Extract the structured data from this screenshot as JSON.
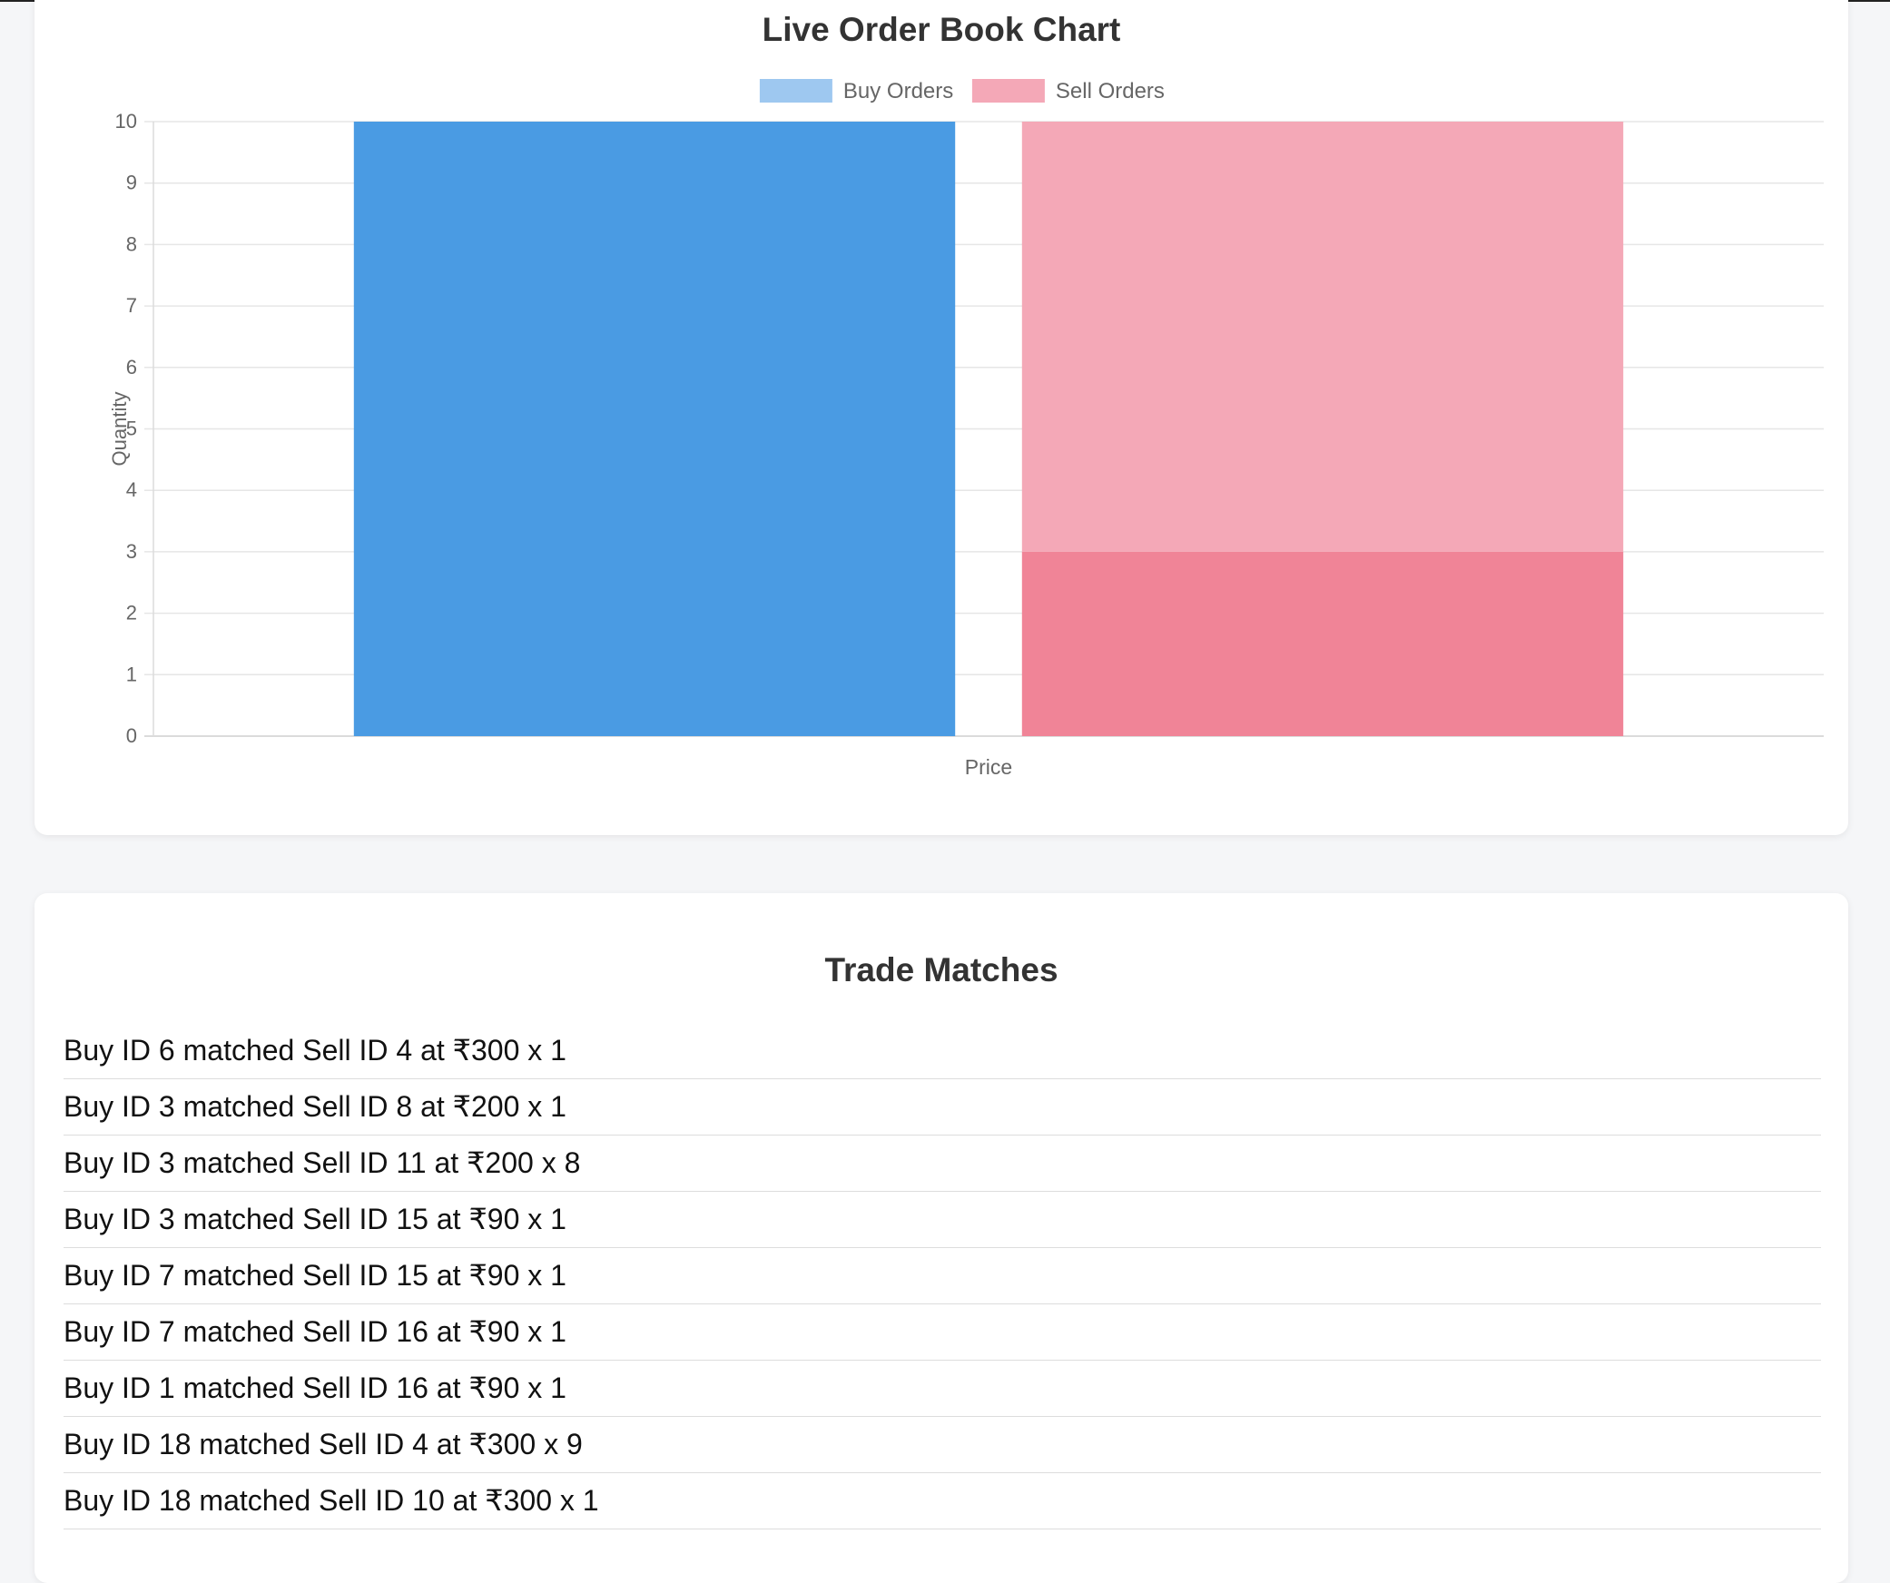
{
  "chart_card": {
    "title": "Live Order Book Chart"
  },
  "chart_data": {
    "type": "bar",
    "title": "",
    "xlabel": "Price",
    "ylabel": "Quantity",
    "ylim": [
      0,
      10
    ],
    "yticks": [
      0,
      1,
      2,
      3,
      4,
      5,
      6,
      7,
      8,
      9,
      10
    ],
    "grid": true,
    "legend_position": "top",
    "categories": [
      ""
    ],
    "series": [
      {
        "name": "Buy Orders",
        "color": "#4a9be3",
        "legend_color": "#9ec8f0",
        "segments": [
          {
            "value": 10
          }
        ]
      },
      {
        "name": "Sell Orders",
        "color": "#f08497",
        "legend_color": "#f4a8b7",
        "segments": [
          {
            "value": 3,
            "color": "#f08497"
          },
          {
            "value": 7,
            "color": "#f4a8b7"
          }
        ]
      }
    ]
  },
  "matches_card": {
    "title": "Trade Matches",
    "items": [
      "Buy ID 6 matched Sell ID 4 at ₹300 x 1",
      "Buy ID 3 matched Sell ID 8 at ₹200 x 1",
      "Buy ID 3 matched Sell ID 11 at ₹200 x 8",
      "Buy ID 3 matched Sell ID 15 at ₹90 x 1",
      "Buy ID 7 matched Sell ID 15 at ₹90 x 1",
      "Buy ID 7 matched Sell ID 16 at ₹90 x 1",
      "Buy ID 1 matched Sell ID 16 at ₹90 x 1",
      "Buy ID 18 matched Sell ID 4 at ₹300 x 9",
      "Buy ID 18 matched Sell ID 10 at ₹300 x 1"
    ]
  }
}
